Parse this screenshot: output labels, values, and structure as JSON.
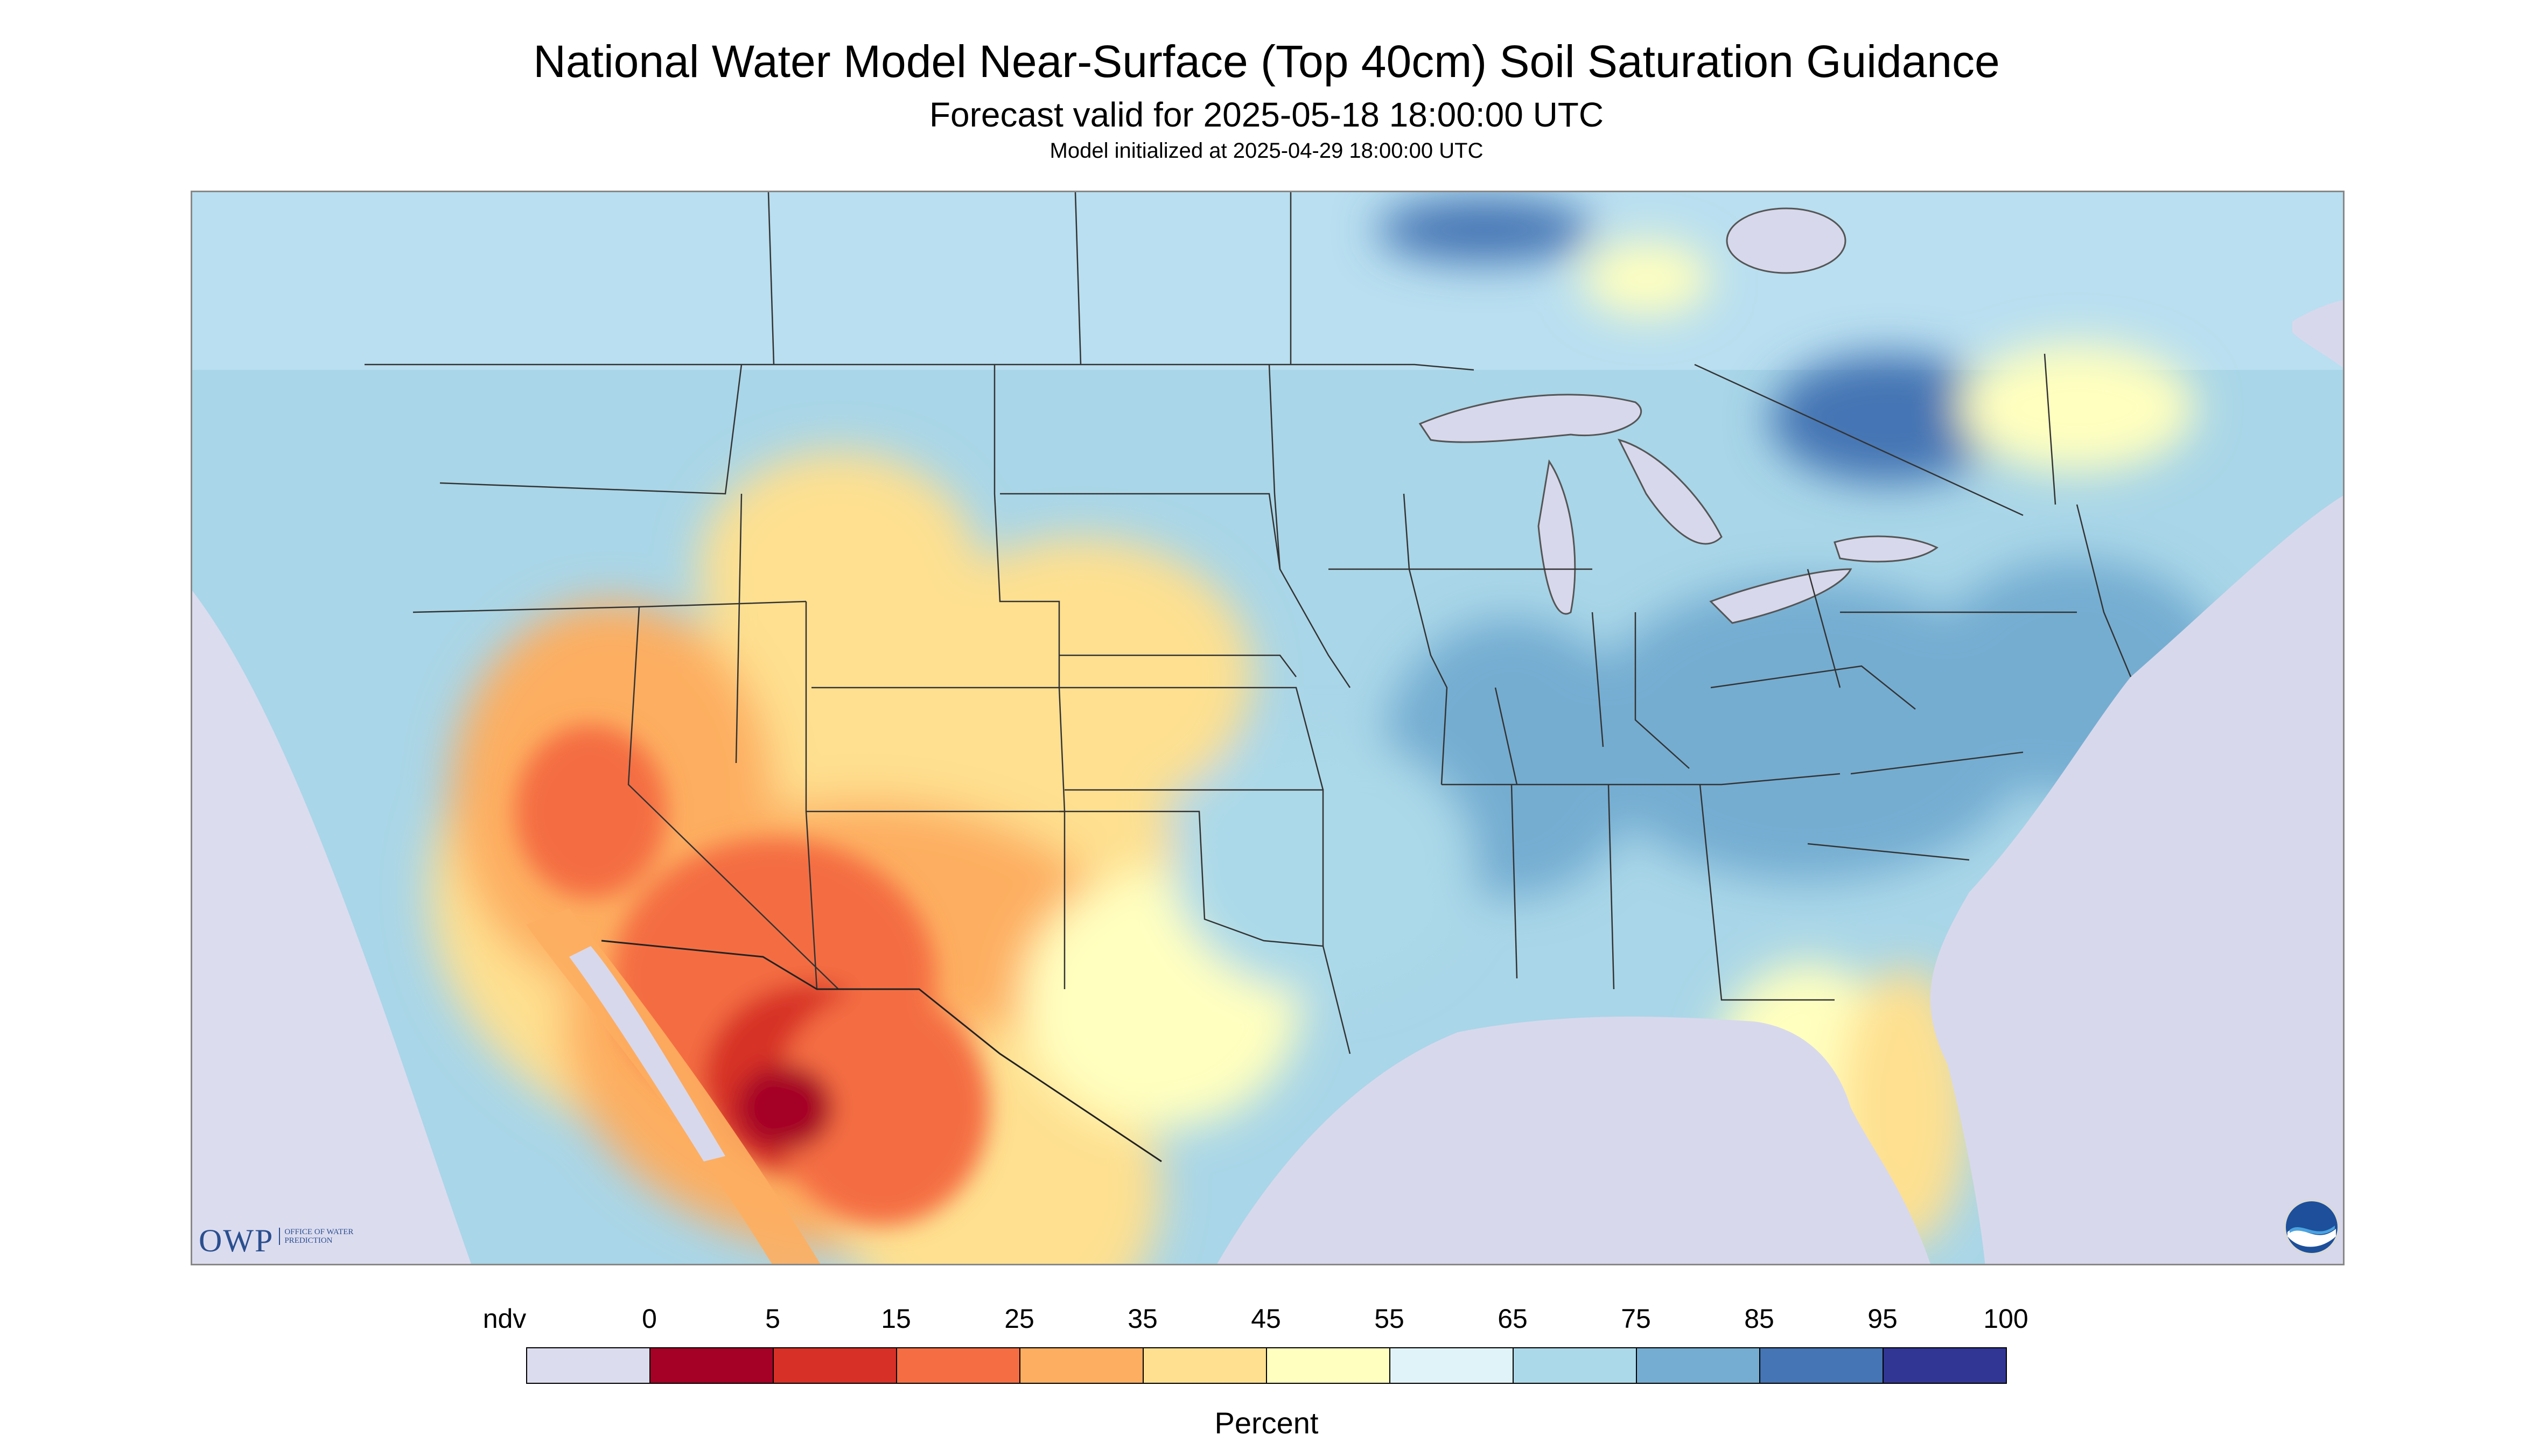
{
  "title": "National Water Model Near-Surface (Top 40cm) Soil Saturation Guidance",
  "subtitle": "Forecast valid for 2025-05-18 18:00:00 UTC",
  "init_line": "Model initialized at 2025-04-29 18:00:00 UTC",
  "logos": {
    "owp_text": "OWP",
    "owp_small": "OFFICE OF WATER PREDICTION",
    "noaa_text": "NOAA"
  },
  "legend": {
    "unit": "Percent",
    "labels": [
      "ndv",
      "0",
      "5",
      "15",
      "25",
      "35",
      "45",
      "55",
      "65",
      "75",
      "85",
      "95",
      "100"
    ],
    "colors": [
      "#dcdcef",
      "#a50026",
      "#d73027",
      "#f46d43",
      "#fdae61",
      "#fee090",
      "#ffffbf",
      "#e0f3f8",
      "#abd9e9",
      "#74add1",
      "#4575b4",
      "#313695"
    ]
  },
  "map_colors": {
    "background_ndv": "#dcdcef",
    "land_base": "#a9d6e8",
    "water": "#d8d8ec",
    "border_line": "#333333"
  }
}
